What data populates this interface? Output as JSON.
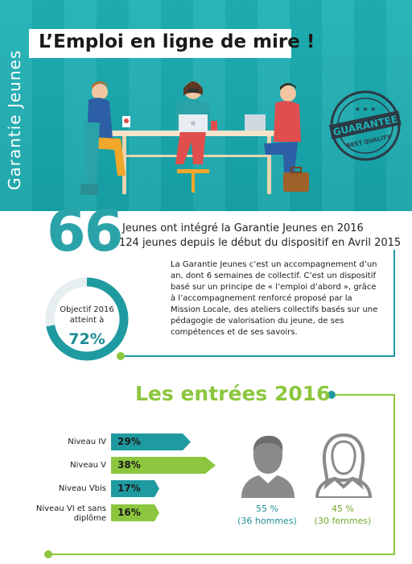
{
  "header": {
    "title": "L’Emploi en ligne de mire !",
    "vertical_label": "Garantie Jeunes",
    "stamp_text_top": "GUARANTEE",
    "stamp_text_bottom": "BEST QUALITY"
  },
  "stats": {
    "big_number": "66",
    "line1": "Jeunes ont intégré la Garantie Jeunes en 2016",
    "line2": "124 jeunes depuis le début du dispositif en Avril 2015",
    "description": "La Garantie Jeunes c’est un accompagnement d’un an, dont 6 semaines de collectif. C’est un dispositif basé sur un principe de « l’emploi d’abord », grâce à l’accompagnement renforcé proposé par la Mission Locale, des ateliers collectifs basés sur une pédagogie de valorisation du jeune, de ses compétences et de ses savoirs."
  },
  "objective": {
    "label_line1": "Objectif 2016",
    "label_line2": "atteint à",
    "value_label": "72%",
    "fraction": 0.72
  },
  "entries": {
    "title": "Les entrées 2016",
    "levels": [
      {
        "label": "Niveau IV",
        "value_label": "29%",
        "value": 29,
        "color": "#1f9aa0"
      },
      {
        "label": "Niveau V",
        "value_label": "38%",
        "value": 38,
        "color": "#8cc63f"
      },
      {
        "label": "Niveau Vbis",
        "value_label": "17%",
        "value": 17,
        "color": "#1f9aa0"
      },
      {
        "label": "Niveau VI et sans diplôme",
        "value_label": "16%",
        "value": 16,
        "color": "#8cc63f"
      }
    ],
    "men": {
      "pct": "55 %",
      "count": "(36 hommes)"
    },
    "women": {
      "pct": "45 %",
      "count": "(30 femmes)"
    }
  },
  "colors": {
    "teal": "#1fb1b5",
    "teal_dark": "#1f8e94",
    "green": "#8cc63f"
  }
}
